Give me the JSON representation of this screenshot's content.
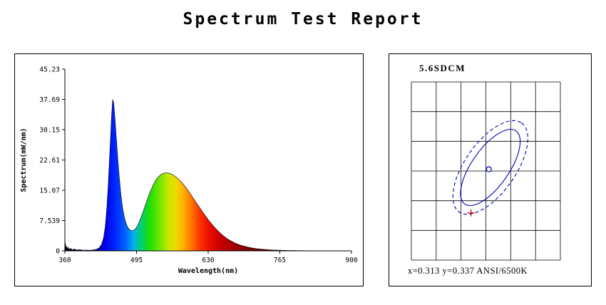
{
  "page": {
    "title": "Spectrum Test Report"
  },
  "chart_data": [
    {
      "id": "spectrum",
      "type": "area",
      "title": "",
      "xlabel": "Wavelength(nm)",
      "ylabel": "Spectrum(mW/nm)",
      "xlim": [
        360,
        900
      ],
      "ylim": [
        0,
        45.23
      ],
      "xticks": [
        360,
        495,
        630,
        765,
        900
      ],
      "xtick_labels": [
        "360",
        "495",
        "630",
        "765",
        "900"
      ],
      "yticks": [
        0,
        7.539,
        15.07,
        22.61,
        30.15,
        37.69,
        45.23
      ],
      "ytick_labels": [
        "0",
        "7.539",
        "15.07",
        "22.61",
        "30.15",
        "37.69",
        "45.23"
      ],
      "grid": false,
      "points": [
        [
          360,
          0.3
        ],
        [
          361,
          1.9
        ],
        [
          362,
          0.5
        ],
        [
          363,
          1.2
        ],
        [
          364,
          0.4
        ],
        [
          366,
          0.9
        ],
        [
          368,
          0.35
        ],
        [
          371,
          0.6
        ],
        [
          374,
          0.25
        ],
        [
          378,
          0.45
        ],
        [
          382,
          0.2
        ],
        [
          388,
          0.3
        ],
        [
          394,
          0.15
        ],
        [
          400,
          0.2
        ],
        [
          408,
          0.15
        ],
        [
          415,
          0.25
        ],
        [
          420,
          0.4
        ],
        [
          425,
          0.8
        ],
        [
          429,
          1.6
        ],
        [
          433,
          3.2
        ],
        [
          436,
          6
        ],
        [
          439,
          10.5
        ],
        [
          442,
          17
        ],
        [
          445,
          25.5
        ],
        [
          448,
          33.5
        ],
        [
          450,
          37.7
        ],
        [
          452,
          36.8
        ],
        [
          454,
          33.5
        ],
        [
          457,
          28
        ],
        [
          460,
          22.5
        ],
        [
          463,
          17.5
        ],
        [
          466,
          13.5
        ],
        [
          469,
          10.5
        ],
        [
          472,
          8.4
        ],
        [
          475,
          7
        ],
        [
          478,
          6
        ],
        [
          481,
          5.4
        ],
        [
          485,
          5.05
        ],
        [
          489,
          5.05
        ],
        [
          493,
          5.5
        ],
        [
          497,
          6.3
        ],
        [
          501,
          7.5
        ],
        [
          506,
          9.2
        ],
        [
          511,
          11.1
        ],
        [
          516,
          13
        ],
        [
          521,
          14.8
        ],
        [
          526,
          16.3
        ],
        [
          531,
          17.5
        ],
        [
          536,
          18.4
        ],
        [
          541,
          19
        ],
        [
          546,
          19.3
        ],
        [
          551,
          19.4
        ],
        [
          556,
          19.3
        ],
        [
          561,
          19.1
        ],
        [
          566,
          18.7
        ],
        [
          571,
          18.2
        ],
        [
          576,
          17.6
        ],
        [
          581,
          16.9
        ],
        [
          586,
          16.1
        ],
        [
          591,
          15.2
        ],
        [
          596,
          14.3
        ],
        [
          601,
          13.3
        ],
        [
          606,
          12.3
        ],
        [
          611,
          11.3
        ],
        [
          616,
          10.35
        ],
        [
          621,
          9.4
        ],
        [
          626,
          8.5
        ],
        [
          631,
          7.6
        ],
        [
          636,
          6.8
        ],
        [
          641,
          6
        ],
        [
          646,
          5.3
        ],
        [
          651,
          4.65
        ],
        [
          656,
          4.05
        ],
        [
          661,
          3.5
        ],
        [
          666,
          3
        ],
        [
          671,
          2.6
        ],
        [
          676,
          2.25
        ],
        [
          681,
          1.9
        ],
        [
          686,
          1.65
        ],
        [
          691,
          1.4
        ],
        [
          696,
          1.2
        ],
        [
          701,
          1.05
        ],
        [
          711,
          0.75
        ],
        [
          721,
          0.55
        ],
        [
          731,
          0.4
        ],
        [
          741,
          0.3
        ],
        [
          751,
          0.22
        ],
        [
          761,
          0.17
        ],
        [
          771,
          0.12
        ],
        [
          781,
          0.09
        ],
        [
          791,
          0.07
        ],
        [
          801,
          0.05
        ],
        [
          821,
          0.03
        ],
        [
          841,
          0.02
        ],
        [
          861,
          0.012
        ],
        [
          881,
          0.007
        ],
        [
          900,
          0.004
        ]
      ],
      "gradient": [
        [
          360,
          "#000000"
        ],
        [
          415,
          "#000080"
        ],
        [
          435,
          "#0000e8"
        ],
        [
          455,
          "#0028ff"
        ],
        [
          475,
          "#0064ff"
        ],
        [
          490,
          "#00b4e8"
        ],
        [
          505,
          "#00d264"
        ],
        [
          520,
          "#1ee000"
        ],
        [
          540,
          "#78e600"
        ],
        [
          555,
          "#c8e600"
        ],
        [
          568,
          "#f0dc00"
        ],
        [
          582,
          "#ffb400"
        ],
        [
          598,
          "#ff7800"
        ],
        [
          612,
          "#ff3c00"
        ],
        [
          628,
          "#f01400"
        ],
        [
          648,
          "#d20000"
        ],
        [
          672,
          "#aa0000"
        ],
        [
          700,
          "#820000"
        ],
        [
          740,
          "#5a0000"
        ],
        [
          800,
          "#3c0000"
        ],
        [
          900,
          "#280000"
        ]
      ]
    },
    {
      "id": "sdcm",
      "type": "scatter",
      "title": "5.6SDCM",
      "footer": "x=0.313 y=0.337 ANSI/6500K",
      "grid": {
        "cols": 6,
        "rows": 6
      },
      "accent_color": "#0000bb",
      "cross_color": "#cc0000",
      "ellipses": [
        {
          "cx": 0.53,
          "cy": 0.48,
          "rx": 0.3,
          "ry": 0.125,
          "angle": -55,
          "style": "solid"
        },
        {
          "cx": 0.53,
          "cy": 0.48,
          "rx": 0.365,
          "ry": 0.17,
          "angle": -55,
          "style": "dashed"
        }
      ],
      "center_marker": {
        "x": 0.52,
        "y": 0.49
      },
      "cross_marker": {
        "x": 0.4,
        "y": 0.735
      }
    }
  ]
}
